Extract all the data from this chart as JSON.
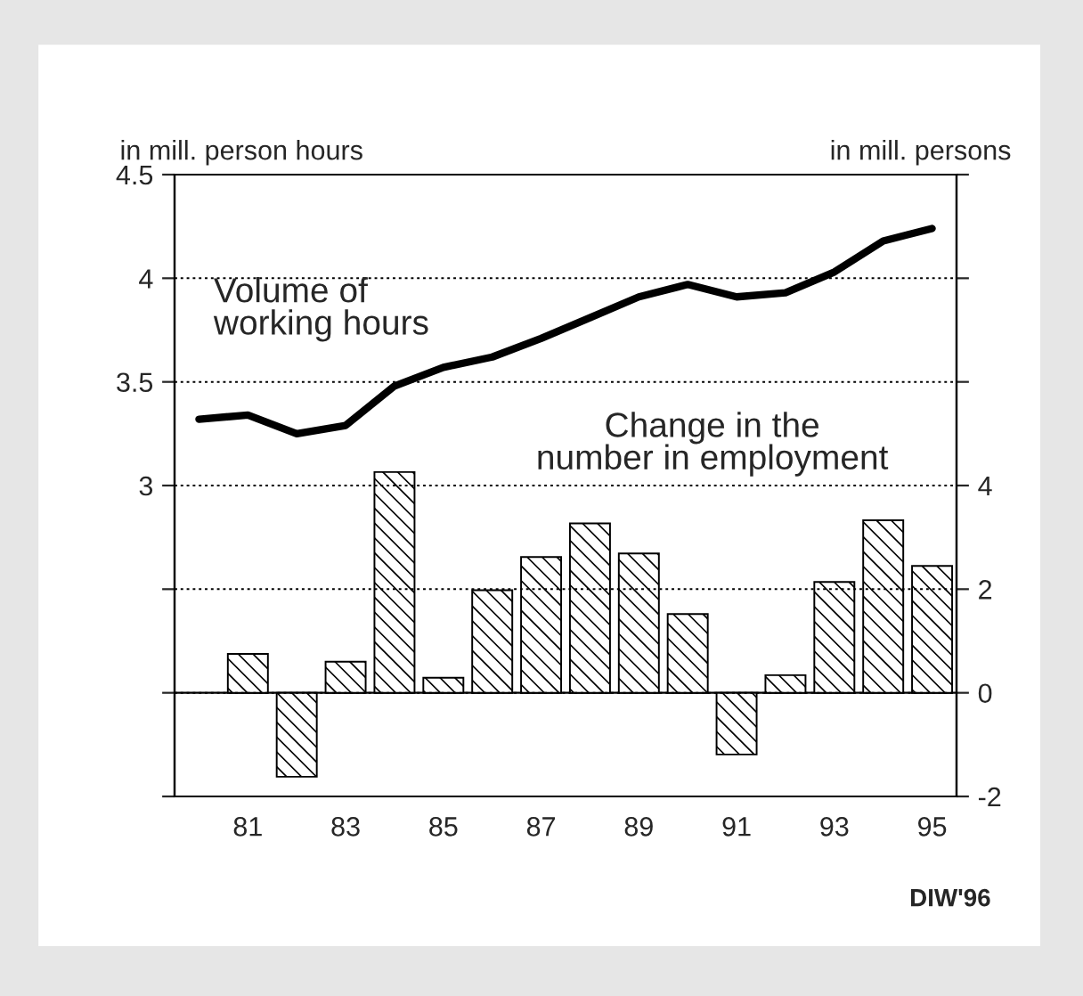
{
  "chart_data": {
    "type": "bar",
    "categories": [
      null,
      "81",
      null,
      "83",
      null,
      "85",
      null,
      "87",
      null,
      "89",
      null,
      "91",
      null,
      "93",
      null,
      "95"
    ],
    "series": [
      {
        "name": "Volume of\nworking hours",
        "type": "line",
        "color": "#000000",
        "values": [
          3.32,
          3.34,
          3.25,
          3.29,
          3.48,
          3.57,
          3.62,
          3.71,
          3.81,
          3.91,
          3.97,
          3.91,
          3.93,
          4.03,
          4.18,
          4.24
        ]
      },
      {
        "name": "Change in the\nnumber in employment",
        "type": "bar",
        "axis": "y2",
        "color": "#000000",
        "values": [
          null,
          0.75,
          -1.62,
          0.6,
          4.26,
          0.29,
          1.98,
          2.62,
          3.27,
          2.69,
          1.52,
          -1.19,
          0.34,
          2.14,
          3.33,
          2.45
        ]
      }
    ],
    "ylabel": "in mill. person hours",
    "y2label": "in mill. persons",
    "ylim": [
      1.5,
      4.5
    ],
    "yticks": [
      {
        "value": 1.5,
        "label": null
      },
      {
        "value": 2,
        "label": null
      },
      {
        "value": 2.5,
        "label": null
      },
      3,
      3.5,
      4,
      4.5
    ],
    "y2lim": [
      -2,
      10
    ],
    "y2ticks": [
      -2,
      0,
      2,
      4,
      {
        "value": 6,
        "label": null
      },
      {
        "value": 8,
        "label": null
      },
      {
        "value": 10,
        "label": null
      }
    ],
    "grid": "y",
    "ref_lines": [
      {
        "axis": "y2",
        "value": 0,
        "color": "#000000",
        "line_style": "solid"
      }
    ],
    "annotations": [
      "DIW'96"
    ]
  }
}
